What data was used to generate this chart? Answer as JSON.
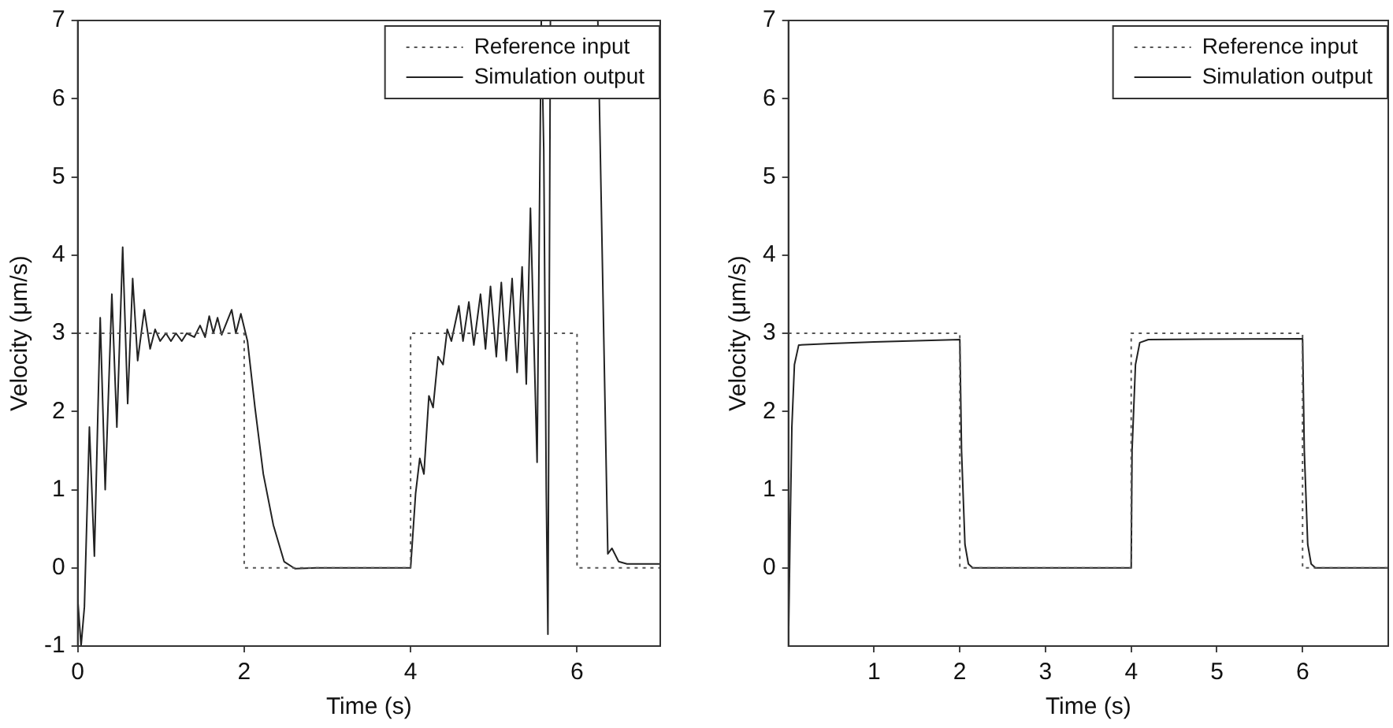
{
  "chart_data": [
    {
      "type": "line",
      "xlabel": "Time (s)",
      "ylabel": "Velocity (μm/s)",
      "xlim": [
        0,
        7
      ],
      "ylim": [
        -1,
        7
      ],
      "xticks": [
        0,
        2,
        4,
        6
      ],
      "yticks": [
        -1,
        0,
        1,
        2,
        3,
        4,
        5,
        6,
        7
      ],
      "grid": false,
      "legend": "top right",
      "marker": "none",
      "series": [
        {
          "name": "Reference input",
          "color": "#555555",
          "line_style": "dotted",
          "x": [
            0,
            2,
            2,
            4,
            4,
            6,
            6,
            7
          ],
          "values": [
            3,
            3,
            0,
            0,
            3,
            3,
            0,
            0
          ]
        },
        {
          "name": "Simulation output",
          "color": "#222222",
          "line_style": "solid",
          "x": [
            0,
            0.04,
            0.08,
            0.14,
            0.2,
            0.27,
            0.33,
            0.41,
            0.47,
            0.54,
            0.6,
            0.66,
            0.72,
            0.8,
            0.87,
            0.93,
            0.99,
            1.06,
            1.12,
            1.18,
            1.25,
            1.31,
            1.4,
            1.47,
            1.53,
            1.58,
            1.63,
            1.68,
            1.73,
            1.85,
            1.9,
            1.96,
            2.04,
            2.13,
            2.23,
            2.35,
            2.48,
            2.61,
            2.86,
            4.0,
            4.06,
            4.11,
            4.16,
            4.22,
            4.27,
            4.33,
            4.39,
            4.44,
            4.49,
            4.58,
            4.63,
            4.7,
            4.76,
            4.84,
            4.9,
            4.96,
            5.03,
            5.09,
            5.15,
            5.22,
            5.28,
            5.34,
            5.39,
            5.44,
            5.52,
            5.57,
            5.6,
            5.63,
            5.65,
            5.68,
            5.9,
            6.25,
            6.37,
            6.42,
            6.5,
            6.6,
            7
          ],
          "values": [
            -0.4,
            -1,
            -0.5,
            1.8,
            0.15,
            3.2,
            1.0,
            3.5,
            1.8,
            4.1,
            2.1,
            3.7,
            2.65,
            3.3,
            2.8,
            3.05,
            2.9,
            3.0,
            2.9,
            3.0,
            2.9,
            3.0,
            2.95,
            3.1,
            2.95,
            3.22,
            3.0,
            3.2,
            2.98,
            3.3,
            3.0,
            3.25,
            2.9,
            2.05,
            1.2,
            0.55,
            0.08,
            -0.01,
            0,
            0,
            0.95,
            1.4,
            1.2,
            2.2,
            2.05,
            2.7,
            2.6,
            3.05,
            2.9,
            3.35,
            2.9,
            3.4,
            2.85,
            3.5,
            2.8,
            3.6,
            2.7,
            3.65,
            2.65,
            3.7,
            2.5,
            3.85,
            2.35,
            4.6,
            1.35,
            7,
            5.35,
            1.0,
            -0.85,
            7,
            null,
            7,
            0.18,
            0.25,
            0.08,
            0.05,
            0.05
          ]
        }
      ]
    },
    {
      "type": "line",
      "xlabel": "Time (s)",
      "ylabel": "Velocity (μm/s)",
      "xlim": [
        0,
        7
      ],
      "ylim": [
        -1,
        7
      ],
      "xticks": [
        1,
        2,
        3,
        4,
        5,
        6
      ],
      "yticks": [
        0,
        1,
        2,
        3,
        4,
        5,
        6,
        7
      ],
      "grid": false,
      "legend": "top right",
      "marker": "none",
      "series": [
        {
          "name": "Reference input",
          "color": "#555555",
          "line_style": "dotted",
          "x": [
            0,
            2,
            2,
            4,
            4,
            6,
            6,
            7
          ],
          "values": [
            3,
            3,
            0,
            0,
            3,
            3,
            0,
            0
          ]
        },
        {
          "name": "Simulation output",
          "color": "#222222",
          "line_style": "solid",
          "x": [
            0,
            0.02,
            0.04,
            0.07,
            0.12,
            0.5,
            1.0,
            2.0,
            2.02,
            2.06,
            2.1,
            2.15,
            4.0,
            4.01,
            4.05,
            4.1,
            4.2,
            6.0,
            6.02,
            6.06,
            6.1,
            6.15,
            7
          ],
          "values": [
            -1,
            0.5,
            1.8,
            2.6,
            2.85,
            2.87,
            2.89,
            2.92,
            1.5,
            0.3,
            0.05,
            0,
            0,
            1.5,
            2.6,
            2.88,
            2.92,
            2.93,
            1.5,
            0.3,
            0.05,
            0,
            0
          ]
        }
      ]
    }
  ]
}
